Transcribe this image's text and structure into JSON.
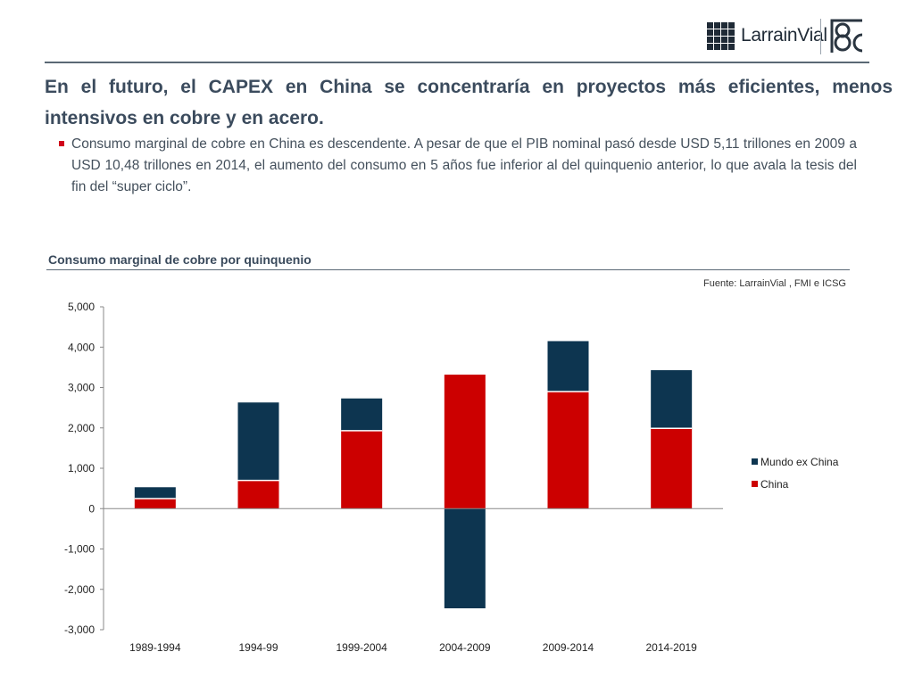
{
  "logo": {
    "text": "LarrainVial"
  },
  "headline": "En el futuro, el CAPEX en China se concentraría en proyectos más eficientes, menos intensivos en cobre y en acero.",
  "bullet": "Consumo marginal de cobre en China es descendente. A pesar de que el PIB nominal pasó desde USD 5,11 trillones en 2009 a USD 10,48 trillones en 2014, el aumento del consumo en 5 años fue inferior al del quinquenio anterior, lo que avala la tesis del fin del “super ciclo”.",
  "source": "Fuente: LarrainVial , FMI e ICSG",
  "colors": {
    "china": "#cc0000",
    "mundo": "#0d3550",
    "bullet": "#d0021b"
  },
  "chart_data": {
    "type": "bar",
    "stacked": true,
    "title": "Consumo marginal de cobre por quinquenio",
    "categories": [
      "1989-1994",
      "1994-99",
      "1999-2004",
      "2004-2009",
      "2009-2014",
      "2014-2019"
    ],
    "series": [
      {
        "name": "China",
        "color": "#cc0000",
        "values": [
          250,
          700,
          1930,
          3320,
          2900,
          1990
        ]
      },
      {
        "name": "Mundo ex China",
        "color": "#0d3550",
        "values": [
          280,
          1930,
          800,
          -2470,
          1250,
          1440
        ]
      }
    ],
    "ylim": [
      -3000,
      5000
    ],
    "yticks": [
      5000,
      4000,
      3000,
      2000,
      1000,
      0,
      -1000,
      -2000,
      -3000
    ],
    "ytick_labels": [
      "5,000",
      "4,000",
      "3,000",
      "2,000",
      "1,000",
      "0",
      "-1,000",
      "-2,000",
      "-3,000"
    ],
    "legend": [
      "Mundo ex China",
      "China"
    ],
    "legend_position": "right"
  }
}
